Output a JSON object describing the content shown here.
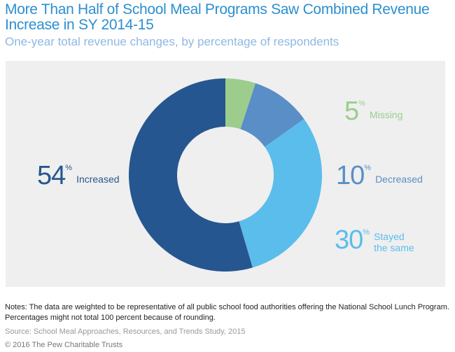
{
  "title": "More Than Half of School Meal Programs Saw Combined Revenue Increase in SY 2014-15",
  "subtitle": "One-year total revenue changes, by percentage of respondents",
  "chart_data": {
    "type": "pie",
    "donut": true,
    "categories": [
      "Missing",
      "Decreased",
      "Stayed the same",
      "Increased"
    ],
    "values": [
      5,
      10,
      30,
      54
    ],
    "unit": "%",
    "colors": [
      "#9ccd8d",
      "#5a8ec6",
      "#5bbdec",
      "#26568f"
    ],
    "labels": [
      {
        "value": "5",
        "unit": "%",
        "name": "Missing"
      },
      {
        "value": "10",
        "unit": "%",
        "name": "Decreased"
      },
      {
        "value": "30",
        "unit": "%",
        "name": "Stayed the same"
      },
      {
        "value": "54",
        "unit": "%",
        "name": "Increased"
      }
    ]
  },
  "notes": "Notes: The data are weighted to be representative of all public school food authorities offering the National School Lunch Program. Percentages might not total 100 percent because of rounding.",
  "source": "Source: School Meal Approaches, Resources, and Trends Study, 2015",
  "copyright": "© 2016 The Pew Charitable Trusts"
}
